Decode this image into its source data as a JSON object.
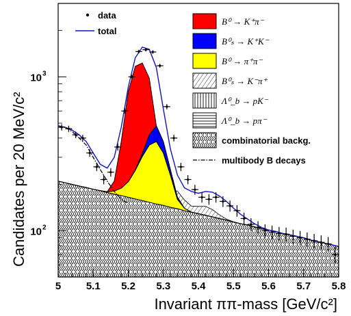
{
  "chart_data": {
    "type": "line",
    "xlabel": "Invariant ππ-mass [GeV/c²]",
    "ylabel": "Candidates per 20 MeV/c²",
    "xlim": [
      5.0,
      5.8
    ],
    "ylim": [
      50,
      3000
    ],
    "yscale": "log",
    "x_ticks": [
      "5",
      "5.1",
      "5.2",
      "5.3",
      "5.4",
      "5.5",
      "5.6",
      "5.7",
      "5.8"
    ],
    "y_ticks": [
      {
        "value": 100,
        "base": "10",
        "exp": "2"
      },
      {
        "value": 1000,
        "base": "10",
        "exp": "3"
      }
    ],
    "colors": {
      "bkk": "#ff0000",
      "bskk": "#0000ff",
      "bpipi": "#ffff00",
      "total": "#1010cc"
    },
    "legend": [
      {
        "key": "data",
        "label": "data"
      },
      {
        "key": "total",
        "label": "total"
      },
      {
        "key": "bkpi",
        "label": "B⁰ → K⁺π⁻"
      },
      {
        "key": "bskk",
        "label": "B⁰ₛ → K⁺K⁻"
      },
      {
        "key": "bpipi",
        "label": "B⁰ → π⁺π⁻"
      },
      {
        "key": "bskpi",
        "label": "B⁰ₛ → K⁻π⁺"
      },
      {
        "key": "lbpk",
        "label": "Λ⁰_b → pK⁻"
      },
      {
        "key": "lbppi",
        "label": "Λ⁰_b → pπ⁻"
      },
      {
        "key": "comb",
        "label": "combinatorial backg."
      },
      {
        "key": "multibody",
        "label": "multibody B decays"
      }
    ],
    "data_points": {
      "x": [
        5.01,
        5.03,
        5.05,
        5.07,
        5.09,
        5.11,
        5.13,
        5.15,
        5.17,
        5.19,
        5.21,
        5.23,
        5.25,
        5.27,
        5.29,
        5.31,
        5.33,
        5.35,
        5.37,
        5.39,
        5.41,
        5.43,
        5.45,
        5.47,
        5.49,
        5.51,
        5.53,
        5.55,
        5.57,
        5.59,
        5.61,
        5.63,
        5.65,
        5.67,
        5.69,
        5.71,
        5.73,
        5.75,
        5.77,
        5.79
      ],
      "y": [
        470,
        460,
        420,
        400,
        320,
        260,
        215,
        240,
        350,
        600,
        1000,
        1460,
        1500,
        1450,
        1180,
        640,
        400,
        260,
        215,
        185,
        165,
        160,
        165,
        155,
        145,
        135,
        120,
        110,
        105,
        100,
        98,
        96,
        95,
        92,
        90,
        88,
        86,
        84,
        82,
        70
      ]
    },
    "curves": {
      "x": [
        5.0,
        5.02,
        5.04,
        5.06,
        5.08,
        5.1,
        5.12,
        5.14,
        5.16,
        5.18,
        5.2,
        5.22,
        5.24,
        5.26,
        5.28,
        5.3,
        5.32,
        5.34,
        5.36,
        5.38,
        5.4,
        5.42,
        5.44,
        5.46,
        5.48,
        5.5,
        5.52,
        5.54,
        5.56,
        5.58,
        5.6,
        5.62,
        5.64,
        5.66,
        5.68,
        5.7,
        5.72,
        5.74,
        5.76,
        5.78,
        5.8
      ],
      "comb": [
        210,
        205,
        200,
        195,
        191,
        186,
        182,
        177,
        173,
        169,
        165,
        161,
        157,
        153,
        149,
        146,
        142,
        139,
        135,
        132,
        129,
        126,
        123,
        120,
        117,
        114,
        111,
        109,
        106,
        103,
        101,
        99,
        96,
        94,
        92,
        90,
        87,
        85,
        83,
        81,
        79
      ],
      "bpipi": [
        210,
        205,
        200,
        195,
        191,
        186,
        182,
        179,
        181,
        189,
        208,
        246,
        304,
        360,
        380,
        320,
        230,
        160,
        140,
        132,
        129,
        126,
        123,
        120,
        117,
        114,
        111,
        109,
        106,
        103,
        101,
        99,
        96,
        94,
        92,
        90,
        87,
        85,
        83,
        81,
        79
      ],
      "bskk": [
        210,
        205,
        200,
        195,
        191,
        186,
        182,
        179,
        181,
        189,
        208,
        248,
        318,
        420,
        480,
        380,
        250,
        165,
        140,
        132,
        129,
        126,
        123,
        120,
        117,
        114,
        111,
        109,
        106,
        103,
        101,
        99,
        96,
        94,
        92,
        90,
        87,
        85,
        83,
        81,
        79
      ],
      "bkpi": [
        210,
        205,
        200,
        195,
        191,
        186,
        182,
        179,
        210,
        380,
        800,
        1170,
        1230,
        980,
        480,
        380,
        250,
        165,
        140,
        132,
        129,
        126,
        123,
        120,
        117,
        114,
        111,
        109,
        106,
        103,
        101,
        99,
        96,
        94,
        92,
        90,
        87,
        85,
        83,
        81,
        79
      ],
      "total": [
        480,
        470,
        450,
        420,
        380,
        320,
        270,
        255,
        300,
        470,
        860,
        1330,
        1560,
        1510,
        1150,
        620,
        340,
        230,
        190,
        180,
        175,
        180,
        178,
        168,
        155,
        140,
        128,
        119,
        111,
        105,
        101,
        99,
        96,
        94,
        92,
        90,
        87,
        85,
        83,
        81,
        79
      ],
      "multibody": [
        480,
        470,
        440,
        400,
        360,
        300,
        250,
        210,
        180,
        160,
        150
      ]
    }
  }
}
